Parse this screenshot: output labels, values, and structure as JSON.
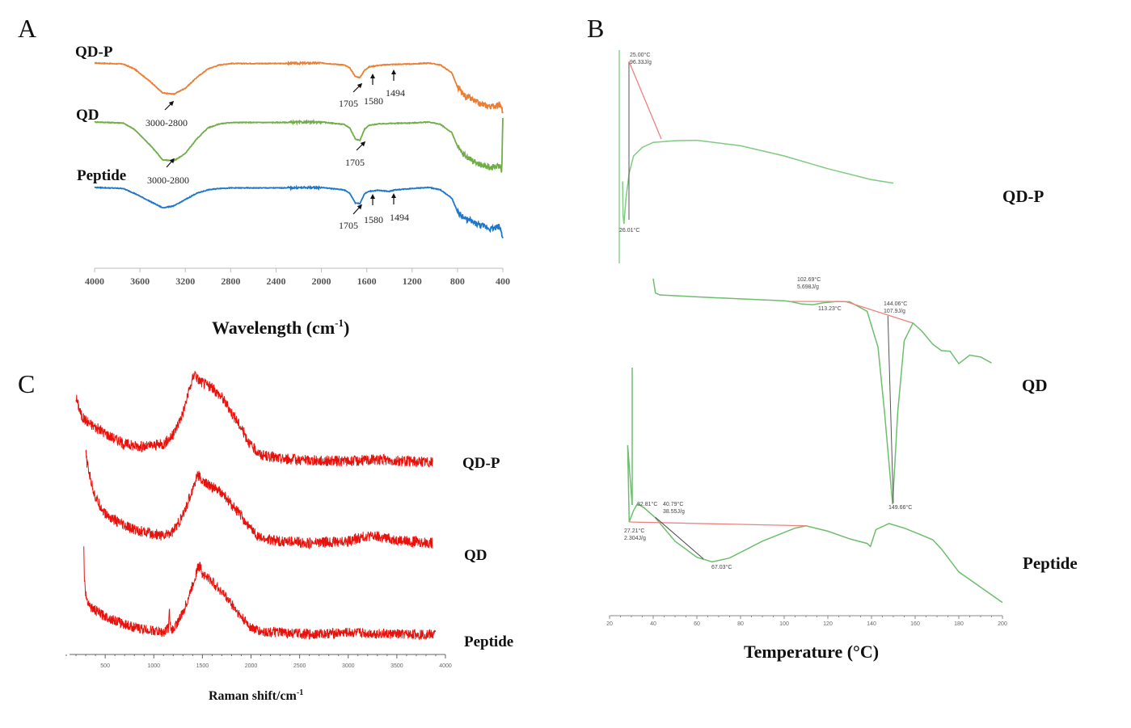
{
  "chart_data": [
    {
      "panel": "A",
      "type": "line",
      "title": "",
      "xlabel": "Wavelength (cm-1)",
      "xlabel_main": "Wavelength",
      "xlabel_unit": "(cm",
      "xlabel_sup": "-1",
      "xlabel_close": ")",
      "ylabel": "",
      "xlim": [
        4000,
        400
      ],
      "x_reversed": true,
      "xticks": [
        4000,
        3600,
        3200,
        2800,
        2400,
        2000,
        1600,
        1200,
        800,
        400
      ],
      "series": [
        {
          "name": "QD-P",
          "color": "#ED7D31",
          "x": [
            4000,
            3750,
            3650,
            3500,
            3400,
            3300,
            3200,
            3100,
            3000,
            2900,
            2800,
            2400,
            2000,
            1800,
            1750,
            1700,
            1660,
            1620,
            1580,
            1500,
            1400,
            1200,
            1050,
            950,
            850,
            800,
            780,
            750,
            700,
            600,
            500,
            430,
            410,
            400
          ],
          "y": [
            0.0,
            -0.02,
            -0.12,
            -0.4,
            -0.62,
            -0.64,
            -0.52,
            -0.3,
            -0.12,
            -0.04,
            -0.01,
            -0.01,
            0.0,
            -0.04,
            -0.1,
            -0.28,
            -0.3,
            -0.15,
            -0.08,
            -0.05,
            -0.03,
            -0.02,
            0.0,
            -0.04,
            -0.2,
            -0.5,
            -0.55,
            -0.65,
            -0.72,
            -0.85,
            -0.9,
            -0.85,
            -0.95,
            -1.0
          ]
        },
        {
          "name": "QD",
          "color": "#70AD47",
          "x": [
            4000,
            3750,
            3650,
            3500,
            3400,
            3300,
            3200,
            3100,
            3000,
            2900,
            2800,
            2400,
            2000,
            1800,
            1750,
            1700,
            1660,
            1620,
            1580,
            1500,
            1400,
            1200,
            1050,
            950,
            850,
            800,
            780,
            750,
            700,
            600,
            500,
            430,
            410,
            400
          ],
          "y": [
            0.0,
            -0.02,
            -0.15,
            -0.5,
            -0.78,
            -0.8,
            -0.65,
            -0.35,
            -0.12,
            -0.04,
            -0.01,
            -0.01,
            0.0,
            -0.05,
            -0.12,
            -0.35,
            -0.38,
            -0.15,
            -0.07,
            -0.04,
            -0.03,
            -0.02,
            0.0,
            -0.05,
            -0.22,
            -0.5,
            -0.58,
            -0.66,
            -0.75,
            -0.88,
            -0.95,
            -0.9,
            -1.0,
            0.05
          ]
        },
        {
          "name": "Peptide",
          "color": "#1F77C9",
          "x": [
            4000,
            3750,
            3650,
            3500,
            3400,
            3300,
            3200,
            3100,
            3000,
            2900,
            2800,
            2400,
            2000,
            1800,
            1750,
            1700,
            1660,
            1620,
            1580,
            1500,
            1400,
            1350,
            1200,
            1050,
            950,
            850,
            800,
            780,
            750,
            700,
            600,
            500,
            430,
            410,
            400
          ],
          "y": [
            0.0,
            -0.02,
            -0.12,
            -0.3,
            -0.42,
            -0.38,
            -0.25,
            -0.12,
            -0.05,
            -0.02,
            -0.01,
            -0.01,
            0.0,
            -0.05,
            -0.12,
            -0.32,
            -0.33,
            -0.13,
            -0.08,
            -0.06,
            -0.08,
            -0.05,
            -0.02,
            0.0,
            -0.05,
            -0.22,
            -0.5,
            -0.55,
            -0.62,
            -0.68,
            -0.78,
            -0.85,
            -0.8,
            -0.95,
            -1.0
          ]
        }
      ],
      "annotations": [
        {
          "series": "QD-P",
          "text": "3000-2800"
        },
        {
          "series": "QD-P",
          "text": "1705"
        },
        {
          "series": "QD-P",
          "text": "1580"
        },
        {
          "series": "QD-P",
          "text": "1494"
        },
        {
          "series": "QD",
          "text": "3000-2800"
        },
        {
          "series": "QD",
          "text": "1705"
        },
        {
          "series": "Peptide",
          "text": "1705"
        },
        {
          "series": "Peptide",
          "text": "1580"
        },
        {
          "series": "Peptide",
          "text": "1494"
        }
      ]
    },
    {
      "panel": "B",
      "type": "line",
      "title": "",
      "xlabel": "Temperature (°C)",
      "ylabel": "",
      "xlim": [
        20,
        200
      ],
      "xticks": [
        20,
        40,
        60,
        80,
        100,
        120,
        140,
        160,
        180,
        200
      ],
      "series": [
        {
          "name": "QD-P",
          "color": "#7FCB7F",
          "x": [
            26,
            26.2,
            26.6,
            27.5,
            29,
            31,
            35,
            40,
            50,
            60,
            80,
            100,
            120,
            140,
            150
          ],
          "y": [
            -5,
            -9,
            -10,
            -7,
            -4,
            -2,
            -1,
            -0.4,
            -0.2,
            -0.15,
            -0.8,
            -2,
            -3.5,
            -4.8,
            -5.2
          ],
          "annotations": [
            {
              "text_line1": "25.00°C",
              "text_line2": "96.33J/g"
            },
            {
              "text_line1": "26.01°C",
              "text_line2": ""
            }
          ]
        },
        {
          "name": "QD",
          "color": "#6DBE6D",
          "x": [
            40,
            41,
            43,
            60,
            80,
            100,
            102.69,
            108,
            113.23,
            118,
            124,
            130,
            138,
            143,
            146,
            149.66,
            152,
            155,
            159,
            163,
            168,
            172,
            176,
            180,
            185,
            190,
            195
          ],
          "y": [
            2.5,
            0.3,
            0,
            -0.3,
            -0.6,
            -0.9,
            -1.0,
            -1.4,
            -1.5,
            -1.2,
            -1.0,
            -1.05,
            -2.5,
            -8,
            -18,
            -32,
            -18,
            -7,
            -4.3,
            -5.5,
            -7.5,
            -8.5,
            -8.6,
            -10.5,
            -9.2,
            -9.5,
            -10.4
          ],
          "annotations": [
            {
              "text_line1": "102.69°C",
              "text_line2": "5.698J/g"
            },
            {
              "text_line1": "113.23°C",
              "text_line2": ""
            },
            {
              "text_line1": "144.06°C",
              "text_line2": "107.9J/g"
            },
            {
              "text_line1": "149.66°C",
              "text_line2": ""
            }
          ]
        },
        {
          "name": "Peptide",
          "color": "#6DBE6D",
          "x": [
            28,
            28.3,
            29,
            31,
            32.81,
            36,
            40.79,
            50,
            60,
            67.03,
            75,
            90,
            105,
            110,
            120,
            130,
            138,
            139.5,
            142,
            148,
            155,
            162,
            168,
            172,
            180,
            190,
            200
          ],
          "y": [
            30,
            10,
            0,
            1.5,
            2.4,
            1.8,
            0.6,
            -2.5,
            -4.6,
            -5.2,
            -4.7,
            -2.5,
            -0.8,
            -0.5,
            -1.2,
            -2.2,
            -2.8,
            -3.2,
            -1.0,
            -0.2,
            -0.8,
            -1.6,
            -2.3,
            -3.5,
            -6.5,
            -8.5,
            -10.5
          ],
          "annotations": [
            {
              "text_line1": "32.81°C",
              "text_line2": ""
            },
            {
              "text_line1": "40.79°C",
              "text_line2": "38.55J/g"
            },
            {
              "text_line1": "27.21°C",
              "text_line2": "2.304J/g"
            },
            {
              "text_line1": "67.03°C",
              "text_line2": ""
            }
          ]
        }
      ]
    },
    {
      "panel": "C",
      "type": "line",
      "title": "",
      "xlabel": "Raman shift/cm-1",
      "xlabel_main": "Raman shift/cm",
      "xlabel_sup": "-1",
      "ylabel": "",
      "xlim": [
        0,
        4000
      ],
      "xticks": [
        500,
        1000,
        1500,
        2000,
        2500,
        3000,
        3500,
        4000
      ],
      "series": [
        {
          "name": "QD-P",
          "color": "#E8120C",
          "x": [
            200,
            220,
            260,
            350,
            500,
            700,
            900,
            1100,
            1200,
            1300,
            1380,
            1420,
            1450,
            1500,
            1600,
            1700,
            1800,
            1900,
            2000,
            2100,
            2300,
            2600,
            3000,
            3300,
            3600,
            3870
          ],
          "y": [
            0.72,
            0.64,
            0.5,
            0.42,
            0.32,
            0.2,
            0.17,
            0.2,
            0.3,
            0.55,
            0.85,
            1.0,
            0.92,
            0.88,
            0.82,
            0.72,
            0.55,
            0.38,
            0.18,
            0.08,
            0.04,
            0.02,
            0.01,
            0.03,
            0.01,
            0.0
          ]
        },
        {
          "name": "QD",
          "color": "#E8120C",
          "x": [
            300,
            310,
            350,
            400,
            500,
            700,
            900,
            1100,
            1200,
            1300,
            1400,
            1450,
            1500,
            1600,
            1700,
            1800,
            1900,
            2000,
            2100,
            2300,
            2600,
            3000,
            3200,
            3400,
            3600,
            3870
          ],
          "y": [
            1.0,
            0.9,
            0.7,
            0.5,
            0.32,
            0.18,
            0.12,
            0.08,
            0.13,
            0.3,
            0.6,
            0.76,
            0.68,
            0.62,
            0.55,
            0.42,
            0.3,
            0.15,
            0.05,
            0.02,
            0.0,
            0.02,
            0.08,
            0.05,
            0.02,
            0.0
          ]
        },
        {
          "name": "Peptide",
          "color": "#E8120C",
          "x": [
            280,
            285,
            300,
            350,
            450,
            600,
            800,
            1000,
            1100,
            1150,
            1160,
            1175,
            1200,
            1300,
            1400,
            1450,
            1480,
            1500,
            1600,
            1700,
            1800,
            1900,
            2000,
            2100,
            2300,
            2600,
            3000,
            3500,
            3900
          ],
          "y": [
            1.0,
            0.7,
            0.45,
            0.32,
            0.24,
            0.16,
            0.08,
            0.04,
            0.02,
            0.08,
            0.28,
            0.03,
            0.06,
            0.25,
            0.58,
            0.78,
            0.8,
            0.72,
            0.62,
            0.5,
            0.36,
            0.2,
            0.08,
            0.03,
            0.02,
            0.0,
            0.02,
            0.0,
            0.0
          ]
        }
      ]
    }
  ],
  "panel_letters": {
    "A": "A",
    "B": "B",
    "C": "C"
  },
  "labels": {
    "A": {
      "qdp": "QD-P",
      "qd": "QD",
      "peptide": "Peptide"
    },
    "B": {
      "qdp": "QD-P",
      "qd": "QD",
      "peptide": "Peptide"
    },
    "C": {
      "qdp": "QD-P",
      "qd": "QD",
      "peptide": "Peptide"
    }
  }
}
